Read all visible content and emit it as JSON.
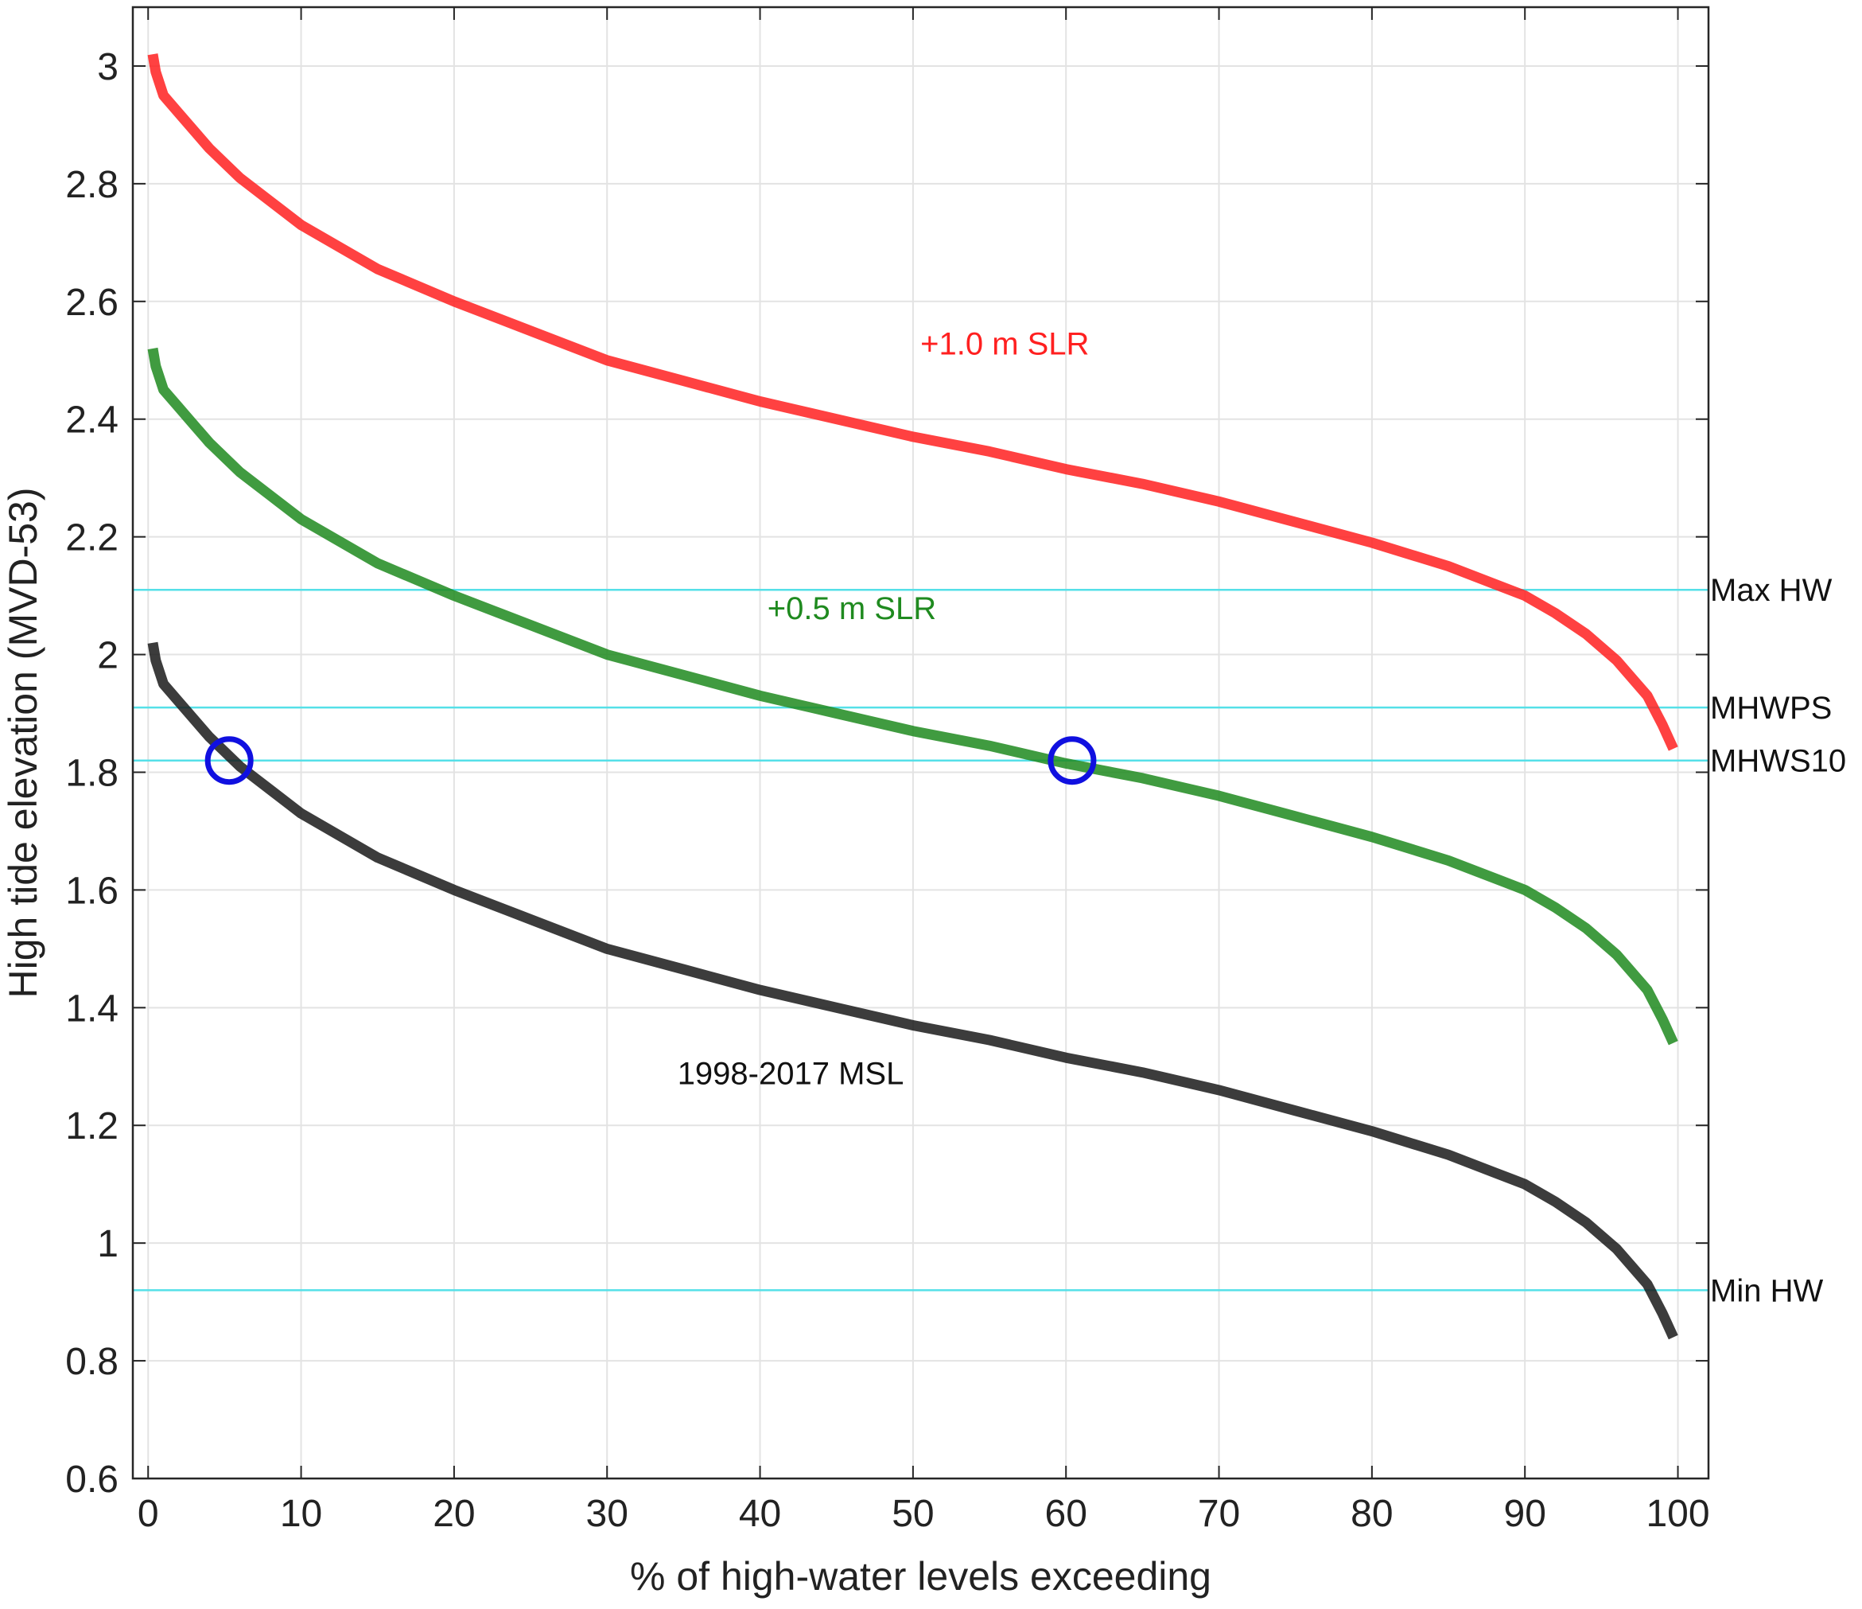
{
  "chart_data": {
    "type": "line",
    "xlabel": "% of high-water levels exceeding",
    "ylabel": "High tide elevation (MVD-53)",
    "xlim": [
      -1,
      102
    ],
    "ylim": [
      0.6,
      3.1
    ],
    "xticks": [
      0,
      10,
      20,
      30,
      40,
      50,
      60,
      70,
      80,
      90,
      100
    ],
    "yticks": [
      0.6,
      0.8,
      1,
      1.2,
      1.4,
      1.6,
      1.8,
      2,
      2.2,
      2.4,
      2.6,
      2.8,
      3
    ],
    "xtick_labels": [
      "0",
      "10",
      "20",
      "30",
      "40",
      "50",
      "60",
      "70",
      "80",
      "90",
      "100"
    ],
    "ytick_labels": [
      "0.6",
      "0.8",
      "1",
      "1.2",
      "1.4",
      "1.6",
      "1.8",
      "2",
      "2.2",
      "2.4",
      "2.6",
      "2.8",
      "3"
    ],
    "grid": true,
    "series": [
      {
        "name": "+1.0 m SLR",
        "color": "#ff2020",
        "points": [
          [
            0.3,
            3.02
          ],
          [
            0.5,
            2.99
          ],
          [
            1,
            2.95
          ],
          [
            2,
            2.92
          ],
          [
            3,
            2.89
          ],
          [
            4,
            2.86
          ],
          [
            5,
            2.835
          ],
          [
            6,
            2.81
          ],
          [
            8,
            2.77
          ],
          [
            10,
            2.73
          ],
          [
            15,
            2.655
          ],
          [
            20,
            2.6
          ],
          [
            25,
            2.55
          ],
          [
            30,
            2.5
          ],
          [
            35,
            2.465
          ],
          [
            40,
            2.43
          ],
          [
            45,
            2.4
          ],
          [
            50,
            2.37
          ],
          [
            55,
            2.345
          ],
          [
            60,
            2.315
          ],
          [
            65,
            2.29
          ],
          [
            70,
            2.26
          ],
          [
            75,
            2.225
          ],
          [
            80,
            2.19
          ],
          [
            85,
            2.15
          ],
          [
            88,
            2.12
          ],
          [
            90,
            2.1
          ],
          [
            92,
            2.07
          ],
          [
            94,
            2.035
          ],
          [
            96,
            1.99
          ],
          [
            97,
            1.96
          ],
          [
            98,
            1.93
          ],
          [
            99,
            1.88
          ],
          [
            99.7,
            1.84
          ]
        ]
      },
      {
        "name": "+0.5 m SLR",
        "color": "#1f8a1f",
        "points": [
          [
            0.3,
            2.52
          ],
          [
            0.5,
            2.49
          ],
          [
            1,
            2.45
          ],
          [
            2,
            2.42
          ],
          [
            3,
            2.39
          ],
          [
            4,
            2.36
          ],
          [
            5,
            2.335
          ],
          [
            6,
            2.31
          ],
          [
            8,
            2.27
          ],
          [
            10,
            2.23
          ],
          [
            15,
            2.155
          ],
          [
            20,
            2.1
          ],
          [
            25,
            2.05
          ],
          [
            30,
            2.0
          ],
          [
            35,
            1.965
          ],
          [
            40,
            1.93
          ],
          [
            45,
            1.9
          ],
          [
            50,
            1.87
          ],
          [
            55,
            1.845
          ],
          [
            60,
            1.815
          ],
          [
            65,
            1.79
          ],
          [
            70,
            1.76
          ],
          [
            75,
            1.725
          ],
          [
            80,
            1.69
          ],
          [
            85,
            1.65
          ],
          [
            88,
            1.62
          ],
          [
            90,
            1.6
          ],
          [
            92,
            1.57
          ],
          [
            94,
            1.535
          ],
          [
            96,
            1.49
          ],
          [
            97,
            1.46
          ],
          [
            98,
            1.43
          ],
          [
            99,
            1.38
          ],
          [
            99.7,
            1.34
          ]
        ]
      },
      {
        "name": "1998-2017 MSL",
        "color": "#1a1a1a",
        "points": [
          [
            0.3,
            2.02
          ],
          [
            0.5,
            1.99
          ],
          [
            1,
            1.95
          ],
          [
            2,
            1.92
          ],
          [
            3,
            1.89
          ],
          [
            4,
            1.86
          ],
          [
            5,
            1.835
          ],
          [
            6,
            1.81
          ],
          [
            8,
            1.77
          ],
          [
            10,
            1.73
          ],
          [
            15,
            1.655
          ],
          [
            20,
            1.6
          ],
          [
            25,
            1.55
          ],
          [
            30,
            1.5
          ],
          [
            35,
            1.465
          ],
          [
            40,
            1.43
          ],
          [
            45,
            1.4
          ],
          [
            50,
            1.37
          ],
          [
            55,
            1.345
          ],
          [
            60,
            1.315
          ],
          [
            65,
            1.29
          ],
          [
            70,
            1.26
          ],
          [
            75,
            1.225
          ],
          [
            80,
            1.19
          ],
          [
            85,
            1.15
          ],
          [
            88,
            1.12
          ],
          [
            90,
            1.1
          ],
          [
            92,
            1.07
          ],
          [
            94,
            1.035
          ],
          [
            96,
            0.99
          ],
          [
            97,
            0.96
          ],
          [
            98,
            0.93
          ],
          [
            99,
            0.88
          ],
          [
            99.7,
            0.84
          ]
        ]
      }
    ],
    "reference_lines": [
      {
        "label": "Max HW",
        "y": 2.11,
        "color": "#55e0e8"
      },
      {
        "label": "MHWPS",
        "y": 1.91,
        "color": "#55e0e8"
      },
      {
        "label": "MHWS10",
        "y": 1.82,
        "color": "#55e0e8"
      },
      {
        "label": "Min HW",
        "y": 0.92,
        "color": "#55e0e8"
      }
    ],
    "annotations": [
      {
        "text": "+1.0 m SLR",
        "x": 56,
        "y": 2.51,
        "color": "#ff2020"
      },
      {
        "text": "+0.5 m SLR",
        "x": 46,
        "y": 2.06,
        "color": "#1f8a1f"
      },
      {
        "text": "1998-2017 MSL",
        "x": 42,
        "y": 1.27,
        "color": "#111111"
      }
    ],
    "markers": [
      {
        "x": 5.3,
        "y": 1.82,
        "shape": "circle",
        "color": "#1010e0"
      },
      {
        "x": 60.4,
        "y": 1.82,
        "shape": "circle",
        "color": "#1010e0"
      }
    ]
  }
}
